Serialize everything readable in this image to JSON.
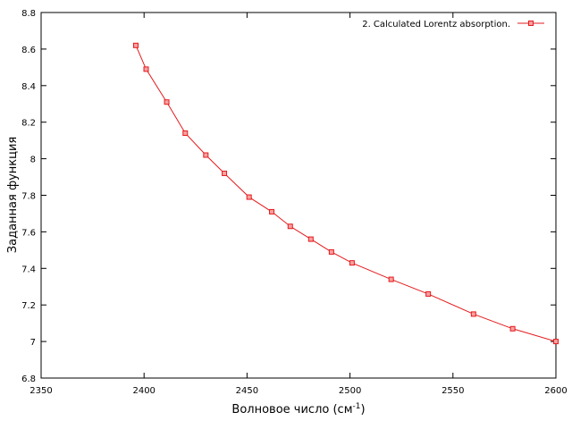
{
  "chart_data": {
    "type": "line",
    "xlabel": "Волновое число (см",
    "xlabel_sup": "-1",
    "xlabel_end": ")",
    "ylabel": "Заданная функция",
    "xlim": [
      2350,
      2600
    ],
    "ylim": [
      6.8,
      8.8
    ],
    "x_ticks": [
      2350,
      2400,
      2450,
      2500,
      2550,
      2600
    ],
    "y_ticks": [
      6.8,
      7,
      7.2,
      7.4,
      7.6,
      7.8,
      8,
      8.2,
      8.4,
      8.6,
      8.8
    ],
    "x_tick_labels": [
      "2350",
      "2400",
      "2450",
      "2500",
      "2550",
      "2600"
    ],
    "y_tick_labels": [
      "6.8",
      "7",
      "7.2",
      "7.4",
      "7.6",
      "7.8",
      "8",
      "8.2",
      "8.4",
      "8.6",
      "8.8"
    ],
    "grid": false,
    "legend_position": "top-right",
    "series": [
      {
        "name": "2. Calculated Lorentz absorption.",
        "color": "#e41a1c",
        "marker": "square",
        "x": [
          2396,
          2401,
          2411,
          2420,
          2430,
          2439,
          2451,
          2462,
          2471,
          2481,
          2491,
          2501,
          2520,
          2538,
          2560,
          2579,
          2600
        ],
        "y": [
          8.62,
          8.49,
          8.31,
          8.14,
          8.02,
          7.92,
          7.79,
          7.71,
          7.63,
          7.56,
          7.49,
          7.43,
          7.34,
          7.26,
          7.15,
          7.07,
          7.0
        ]
      }
    ]
  }
}
